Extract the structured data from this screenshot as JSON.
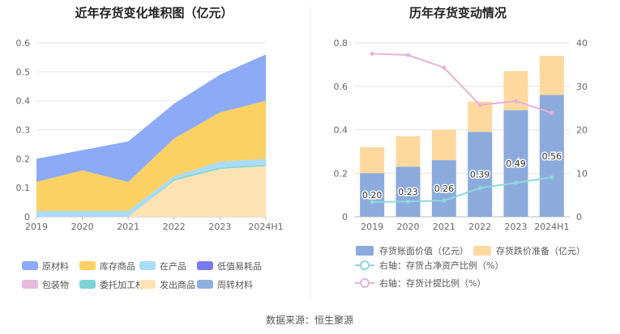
{
  "source_text": "数据来源：恒生聚源",
  "colors": {
    "raw_material": "#8caaf5",
    "inventory_goods": "#fcd163",
    "wip": "#a9dcf6",
    "low_value": "#7b79ee",
    "packaging": "#e7b9dc",
    "consigned": "#7dd3d4",
    "shipped": "#fde2b4",
    "turnover": "#8fafe0",
    "book_value_bar": "#8cabdc",
    "reserve_bar": "#fdd9a0",
    "ratio_line": "#8ed8de",
    "provision_line": "#e7b1d9"
  },
  "chart_data": [
    {
      "type": "area",
      "title": "近年存货变化堆积图（亿元）",
      "categories": [
        "2019",
        "2020",
        "2021",
        "2022",
        "2023",
        "2024H1"
      ],
      "ylim": [
        0,
        0.6
      ],
      "yticks": [
        "0",
        "0.1",
        "0.2",
        "0.3",
        "0.4",
        "0.5",
        "0.6"
      ],
      "grid": true,
      "legend_position": "bottom",
      "series": [
        {
          "name": "原材料",
          "color_key": "raw_material",
          "values": [
            0.08,
            0.07,
            0.14,
            0.12,
            0.13,
            0.16
          ]
        },
        {
          "name": "库存商品",
          "color_key": "inventory_goods",
          "values": [
            0.1,
            0.14,
            0.1,
            0.13,
            0.17,
            0.2
          ]
        },
        {
          "name": "在产品",
          "color_key": "wip",
          "values": [
            0.02,
            0.02,
            0.02,
            0.01,
            0.02,
            0.02
          ]
        },
        {
          "name": "低值易耗品",
          "color_key": "low_value",
          "values": [
            0,
            0,
            0,
            0,
            0,
            0
          ]
        },
        {
          "name": "包装物",
          "color_key": "packaging",
          "values": [
            0,
            0,
            0,
            0,
            0,
            0
          ]
        },
        {
          "name": "委托加工材料",
          "color_key": "consigned",
          "values": [
            0,
            0,
            0,
            0.005,
            0.005,
            0.005
          ]
        },
        {
          "name": "发出商品",
          "color_key": "shipped",
          "values": [
            0,
            0,
            0,
            0.125,
            0.165,
            0.175
          ]
        },
        {
          "name": "周转材料",
          "color_key": "turnover",
          "values": [
            0,
            0,
            0,
            0,
            0,
            0
          ]
        }
      ]
    },
    {
      "type": "bar",
      "title": "历年存货变动情况",
      "categories": [
        "2019",
        "2020",
        "2021",
        "2022",
        "2023",
        "2024H1"
      ],
      "ylim": [
        0,
        0.8
      ],
      "yticks": [
        "0",
        "0.2",
        "0.4",
        "0.6",
        "0.8"
      ],
      "y2lim": [
        0,
        40
      ],
      "y2ticks": [
        "0",
        "10",
        "20",
        "30",
        "40"
      ],
      "grid": true,
      "legend_position": "bottom",
      "series": [
        {
          "name": "存货账面价值（亿元）",
          "axis": "left",
          "kind": "bar",
          "color_key": "book_value_bar",
          "values": [
            0.2,
            0.23,
            0.26,
            0.39,
            0.49,
            0.56
          ],
          "labels": [
            "0.20",
            "0.23",
            "0.26",
            "0.39",
            "0.49",
            "0.56"
          ]
        },
        {
          "name": "存货跌价准备（亿元）",
          "axis": "left",
          "kind": "bar",
          "color_key": "reserve_bar",
          "values": [
            0.12,
            0.14,
            0.14,
            0.14,
            0.18,
            0.18
          ]
        },
        {
          "name": "右轴：存货占净资产比例（%）",
          "axis": "right",
          "kind": "line",
          "color_key": "ratio_line",
          "values": [
            3.4,
            3.5,
            3.7,
            6.6,
            7.8,
            9.1
          ]
        },
        {
          "name": "右轴：存货计提比例（%）",
          "axis": "right",
          "kind": "line",
          "color_key": "provision_line",
          "values": [
            37.5,
            37.2,
            34.3,
            25.7,
            26.6,
            23.9
          ]
        }
      ]
    }
  ]
}
